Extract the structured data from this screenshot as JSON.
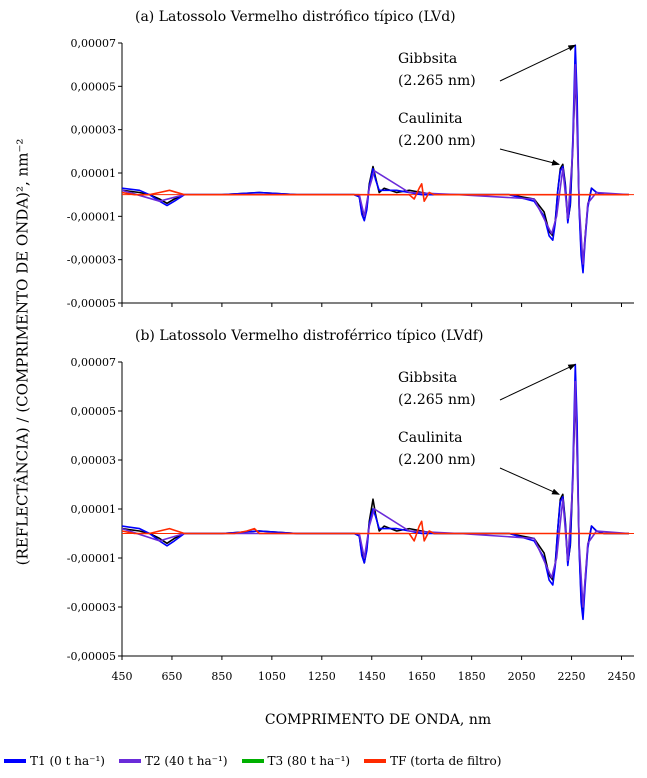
{
  "chart_data": {
    "type": "line",
    "ylabel": "(REFLECTÂNCIA) / (COMPRIMENTO DE ONDA)², nm⁻²",
    "xlabel": "COMPRIMENTO DE ONDA, nm",
    "xlim": [
      450,
      2500
    ],
    "ylim": [
      -5e-05,
      7e-05
    ],
    "x_ticks": [
      "450",
      "650",
      "850",
      "1050",
      "1250",
      "1450",
      "1650",
      "1850",
      "2050",
      "2250",
      "2450"
    ],
    "y_ticks": [
      "0,00007",
      "0,00005",
      "0,00003",
      "0,00001",
      "-0,00001",
      "-0,00003",
      "-0,00005"
    ],
    "y_tick_values": [
      7e-05,
      5e-05,
      3e-05,
      1e-05,
      -1e-05,
      -3e-05,
      -5e-05
    ],
    "legend": [
      {
        "label": "T1 (0 t ha⁻¹)",
        "color": "#0000ff"
      },
      {
        "label": "T2 (40 t ha⁻¹)",
        "color": "#6a2bd9"
      },
      {
        "label": "T3 (80 t ha⁻¹)",
        "color": "#00b000"
      },
      {
        "label": "TF (torta de filtro)",
        "color": "#ff2a00"
      }
    ],
    "panels": [
      {
        "title": "(a) Latossolo Vermelho distrófico típico (LVd)",
        "annotations": [
          {
            "text": [
              "Gibbsita",
              "(2.265 nm)"
            ],
            "x": 2265,
            "y": 6.9e-05
          },
          {
            "text": [
              "Caulinita",
              "(2.200 nm)"
            ],
            "x": 2200,
            "y": 1.4e-05
          }
        ],
        "series": [
          {
            "color": "#000000",
            "x": [
              450,
              520,
              560,
              600,
              630,
              660,
              700,
              850,
              1000,
              1150,
              1300,
              1380,
              1400,
              1410,
              1420,
              1430,
              1440,
              1455,
              1465,
              1480,
              1500,
              1550,
              1600,
              1650,
              1700,
              1800,
              1900,
              2000,
              2100,
              2140,
              2160,
              2175,
              2185,
              2195,
              2205,
              2215,
              2225,
              2235,
              2245,
              2255,
              2265,
              2272,
              2280,
              2288,
              2296,
              2304,
              2315,
              2330,
              2350,
              2380,
              2420,
              2480
            ],
            "y": [
              2e-06,
              1e-06,
              0.0,
              -2e-06,
              -4e-06,
              -2e-06,
              0.0,
              0.0,
              1e-06,
              0.0,
              0.0,
              0.0,
              -1e-06,
              -8e-06,
              -1.1e-05,
              -6e-06,
              5e-06,
              1.3e-05,
              8e-06,
              1e-06,
              3e-06,
              1e-06,
              2e-06,
              1e-06,
              0.0,
              0.0,
              0.0,
              0.0,
              -2e-06,
              -8e-06,
              -1.7e-05,
              -1.9e-05,
              -1.2e-05,
              2e-06,
              1.2e-05,
              1.4e-05,
              5e-06,
              -1.2e-05,
              -5e-06,
              2.2e-05,
              5.5e-05,
              3.5e-05,
              -5e-06,
              -2.5e-05,
              -3.3e-05,
              -2e-05,
              -5e-06,
              3e-06,
              1e-06,
              0.0,
              0.0,
              0.0
            ]
          },
          {
            "color": "#0000ff",
            "x": [
              450,
              520,
              560,
              600,
              630,
              660,
              700,
              850,
              1000,
              1150,
              1300,
              1380,
              1400,
              1410,
              1420,
              1430,
              1440,
              1455,
              1465,
              1480,
              1500,
              1550,
              1600,
              1650,
              1700,
              1800,
              1900,
              2000,
              2100,
              2140,
              2160,
              2175,
              2185,
              2195,
              2205,
              2215,
              2225,
              2235,
              2245,
              2255,
              2265,
              2272,
              2280,
              2288,
              2296,
              2304,
              2315,
              2330,
              2350,
              2380,
              2420,
              2480
            ],
            "y": [
              3e-06,
              2e-06,
              0.0,
              -3e-06,
              -5e-06,
              -3e-06,
              0.0,
              0.0,
              1e-06,
              0.0,
              0.0,
              0.0,
              -1e-06,
              -9e-06,
              -1.2e-05,
              -7e-06,
              4e-06,
              1.2e-05,
              7e-06,
              2e-06,
              2e-06,
              2e-06,
              1e-06,
              0.0,
              0.0,
              0.0,
              0.0,
              0.0,
              -3e-06,
              -1e-05,
              -1.9e-05,
              -2.1e-05,
              -1.3e-05,
              2e-06,
              1.1e-05,
              1.3e-05,
              4e-06,
              -1.3e-05,
              -4e-06,
              2.5e-05,
              6.9e-05,
              4.5e-05,
              -6e-06,
              -2.8e-05,
              -3.6e-05,
              -2.2e-05,
              -6e-06,
              3e-06,
              1e-06,
              0.0,
              0.0,
              0.0
            ]
          },
          {
            "color": "#6a2bd9",
            "x": [
              450,
              600,
              700,
              900,
              1200,
              1400,
              1420,
              1440,
              1460,
              1600,
              1800,
              2100,
              2170,
              2190,
              2215,
              2235,
              2255,
              2265,
              2280,
              2296,
              2315,
              2350,
              2480
            ],
            "y": [
              2e-06,
              -3e-06,
              0.0,
              0.0,
              0.0,
              0.0,
              -1e-05,
              3e-06,
              1.1e-05,
              1e-06,
              0.0,
              -2e-06,
              -1.8e-05,
              -1e-05,
              1.2e-05,
              -1.1e-05,
              2e-05,
              6e-05,
              -4e-06,
              -3.2e-05,
              -4e-06,
              1e-06,
              0.0
            ]
          },
          {
            "color": "#ff2a00",
            "x": [
              450,
              500,
              560,
              600,
              640,
              700,
              800,
              900,
              1000,
              1100,
              1200,
              1300,
              1400,
              1450,
              1500,
              1550,
              1600,
              1620,
              1640,
              1650,
              1660,
              1680,
              1700,
              1800,
              1900,
              2000,
              2100,
              2200,
              2300,
              2400,
              2480
            ],
            "y": [
              1e-06,
              0.0,
              0.0,
              1e-06,
              2e-06,
              0.0,
              0.0,
              0.0,
              0.0,
              0.0,
              0.0,
              0.0,
              0.0,
              0.0,
              0.0,
              0.0,
              0.0,
              -2e-06,
              3e-06,
              5e-06,
              -3e-06,
              1e-06,
              0.0,
              0.0,
              0.0,
              0.0,
              0.0,
              0.0,
              0.0,
              0.0,
              0.0
            ]
          }
        ]
      },
      {
        "title": "(b) Latossolo Vermelho distroférrico típico (LVdf)",
        "annotations": [
          {
            "text": [
              "Gibbsita",
              "(2.265 nm)"
            ],
            "x": 2265,
            "y": 6.9e-05
          },
          {
            "text": [
              "Caulinita",
              "(2.200 nm)"
            ],
            "x": 2200,
            "y": 1.6e-05
          }
        ],
        "series": [
          {
            "color": "#000000",
            "x": [
              450,
              520,
              560,
              600,
              630,
              660,
              700,
              850,
              1000,
              1150,
              1300,
              1380,
              1400,
              1410,
              1420,
              1430,
              1440,
              1455,
              1465,
              1480,
              1500,
              1550,
              1600,
              1650,
              1700,
              1800,
              1900,
              2000,
              2100,
              2140,
              2160,
              2175,
              2185,
              2195,
              2205,
              2215,
              2225,
              2235,
              2245,
              2255,
              2265,
              2272,
              2280,
              2288,
              2296,
              2304,
              2315,
              2330,
              2350,
              2380,
              2420,
              2480
            ],
            "y": [
              2e-06,
              1e-06,
              0.0,
              -2e-06,
              -4e-06,
              -2e-06,
              0.0,
              0.0,
              1e-06,
              0.0,
              0.0,
              0.0,
              -1e-06,
              -8e-06,
              -1.2e-05,
              -6e-06,
              5e-06,
              1.4e-05,
              8e-06,
              1e-06,
              3e-06,
              1e-06,
              2e-06,
              1e-06,
              0.0,
              0.0,
              0.0,
              0.0,
              -2e-06,
              -8e-06,
              -1.7e-05,
              -1.9e-05,
              -1.2e-05,
              2e-06,
              1.4e-05,
              1.6e-05,
              5e-06,
              -1.2e-05,
              -5e-06,
              2.2e-05,
              5.7e-05,
              3.5e-05,
              -5e-06,
              -2.5e-05,
              -3.2e-05,
              -2e-05,
              -5e-06,
              3e-06,
              1e-06,
              0.0,
              0.0,
              0.0
            ]
          },
          {
            "color": "#0000ff",
            "x": [
              450,
              520,
              560,
              600,
              630,
              660,
              700,
              850,
              1000,
              1150,
              1300,
              1380,
              1400,
              1410,
              1420,
              1430,
              1440,
              1455,
              1465,
              1480,
              1500,
              1550,
              1600,
              1650,
              1700,
              1800,
              1900,
              2000,
              2100,
              2140,
              2160,
              2175,
              2185,
              2195,
              2205,
              2215,
              2225,
              2235,
              2245,
              2255,
              2265,
              2272,
              2280,
              2288,
              2296,
              2304,
              2315,
              2330,
              2350,
              2380,
              2420,
              2480
            ],
            "y": [
              3e-06,
              2e-06,
              0.0,
              -3e-06,
              -5e-06,
              -3e-06,
              0.0,
              0.0,
              1e-06,
              0.0,
              0.0,
              0.0,
              -1e-06,
              -9e-06,
              -1.2e-05,
              -7e-06,
              4e-06,
              1e-05,
              7e-06,
              2e-06,
              2e-06,
              2e-06,
              1e-06,
              0.0,
              0.0,
              0.0,
              0.0,
              0.0,
              -3e-06,
              -1e-05,
              -1.9e-05,
              -2.1e-05,
              -1.3e-05,
              2e-06,
              1.3e-05,
              1.5e-05,
              4e-06,
              -1.3e-05,
              -4e-06,
              2.5e-05,
              6.9e-05,
              4.5e-05,
              -6e-06,
              -2.8e-05,
              -3.5e-05,
              -2.2e-05,
              -6e-06,
              3e-06,
              1e-06,
              0.0,
              0.0,
              0.0
            ]
          },
          {
            "color": "#6a2bd9",
            "x": [
              450,
              600,
              700,
              900,
              1200,
              1400,
              1420,
              1440,
              1460,
              1600,
              1800,
              2100,
              2170,
              2190,
              2215,
              2235,
              2255,
              2265,
              2280,
              2296,
              2315,
              2350,
              2480
            ],
            "y": [
              2e-06,
              -3e-06,
              0.0,
              0.0,
              0.0,
              0.0,
              -1e-05,
              3e-06,
              1e-05,
              1e-06,
              0.0,
              -2e-06,
              -1.8e-05,
              -1e-05,
              1.4e-05,
              -1.1e-05,
              2e-05,
              6.2e-05,
              -4e-06,
              -3e-05,
              -4e-06,
              1e-06,
              0.0
            ]
          },
          {
            "color": "#ff2a00",
            "x": [
              450,
              500,
              560,
              600,
              640,
              700,
              800,
              900,
              950,
              980,
              1000,
              1100,
              1200,
              1300,
              1400,
              1450,
              1500,
              1550,
              1600,
              1620,
              1640,
              1650,
              1660,
              1680,
              1700,
              1800,
              1900,
              2000,
              2100,
              2200,
              2300,
              2400,
              2480
            ],
            "y": [
              1e-06,
              0.0,
              0.0,
              1e-06,
              2e-06,
              0.0,
              0.0,
              0.0,
              1e-06,
              2e-06,
              0.0,
              0.0,
              0.0,
              0.0,
              0.0,
              0.0,
              0.0,
              0.0,
              0.0,
              -3e-06,
              3e-06,
              5e-06,
              -3e-06,
              1e-06,
              0.0,
              0.0,
              0.0,
              0.0,
              0.0,
              0.0,
              0.0,
              0.0,
              0.0
            ]
          }
        ]
      }
    ]
  }
}
